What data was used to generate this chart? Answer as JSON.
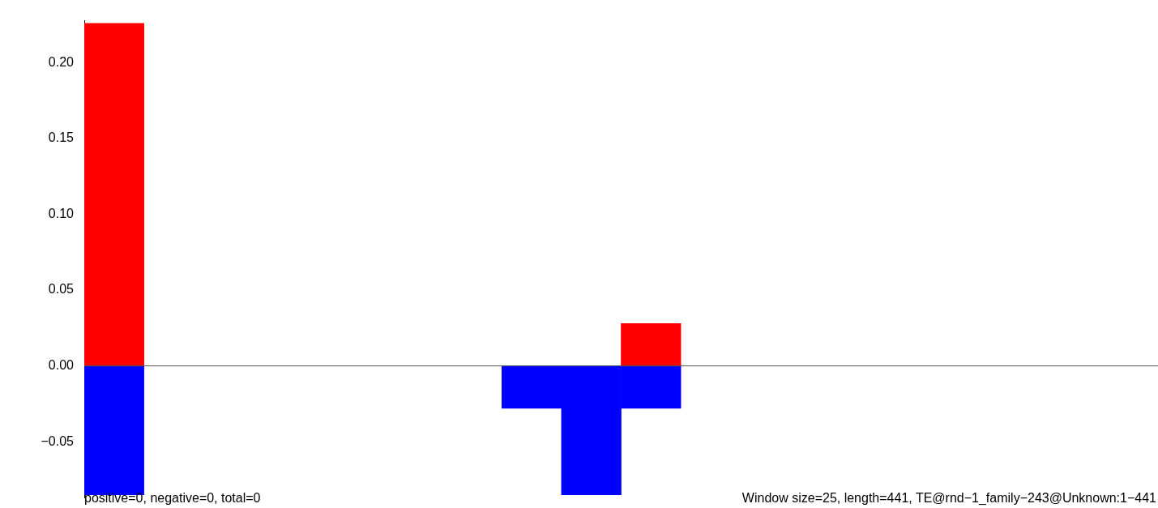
{
  "chart_data": {
    "type": "bar",
    "stacked": true,
    "categories": [
      null,
      null,
      null,
      null,
      null,
      null,
      null,
      null,
      null,
      null,
      null,
      null,
      null,
      null,
      null,
      null,
      null,
      null
    ],
    "series": [
      {
        "color": "#ff0000",
        "values": [
          0.226,
          null,
          null,
          null,
          null,
          null,
          null,
          null,
          null,
          0.028,
          null,
          null,
          null,
          null,
          null,
          null,
          null,
          null
        ]
      },
      {
        "color": "#0000ff",
        "values": [
          -0.085,
          null,
          null,
          null,
          null,
          null,
          null,
          -0.028,
          -0.085,
          -0.028,
          null,
          null,
          null,
          null,
          null,
          null,
          null,
          null
        ]
      }
    ],
    "ylim": [
      -0.087,
      0.228
    ],
    "yticks": [
      -0.05,
      {
        "value": 0,
        "label": "0.00"
      },
      0.05,
      {
        "value": 0.1,
        "label": "0.10"
      },
      0.15,
      {
        "value": 0.2,
        "label": "0.20"
      }
    ],
    "ref_lines": [
      {
        "axis": "y",
        "value": 0,
        "color": "#555555"
      }
    ],
    "grid": false,
    "legend": false,
    "annotations": [
      "positive=0, negative=0, total=0",
      "Window size=25, length=441, TE@rnd−1_family−243@Unknown:1−441"
    ]
  }
}
